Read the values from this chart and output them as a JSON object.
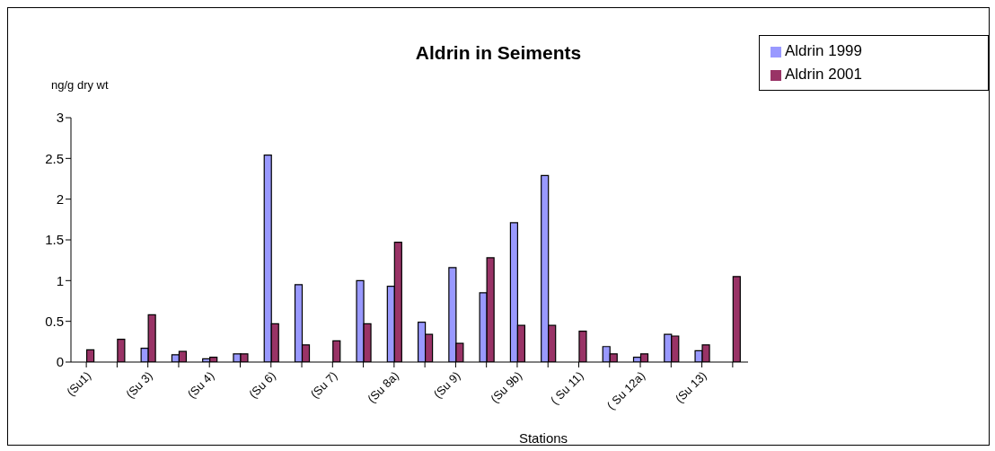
{
  "chart_data": {
    "type": "bar",
    "title": "Aldrin in Seiments",
    "xlabel": "Stations",
    "ylabel": "ng/g dry wt",
    "categories": [
      "(Su1)",
      null,
      "(Su 3)",
      null,
      "(Su 4)",
      null,
      "(Su 6)",
      null,
      "(Su 7)",
      null,
      "(Su 8a)",
      null,
      "(Su 9)",
      null,
      "(Su 9b)",
      null,
      "( Su 11)",
      null,
      "( Su 12a)",
      null,
      "(Su 13)",
      null
    ],
    "series": [
      {
        "name": "Aldrin 1999",
        "color": "#9999ff",
        "values": [
          null,
          null,
          0.17,
          0.09,
          0.04,
          0.1,
          2.54,
          0.95,
          null,
          1.0,
          0.93,
          0.49,
          1.16,
          0.85,
          1.71,
          2.29,
          null,
          0.19,
          0.06,
          0.34,
          0.14,
          null
        ]
      },
      {
        "name": "Aldrin 2001",
        "color": "#993366",
        "values": [
          0.15,
          0.28,
          0.58,
          0.13,
          0.06,
          0.1,
          0.47,
          0.21,
          0.26,
          0.47,
          1.47,
          0.34,
          0.23,
          1.28,
          0.45,
          0.45,
          0.38,
          0.1,
          0.1,
          0.32,
          0.21,
          1.05
        ]
      }
    ],
    "ylim": [
      0,
      3
    ],
    "yticks": [
      0,
      0.5,
      1,
      1.5,
      2,
      2.5,
      3
    ],
    "grid": false,
    "legend": "top right"
  }
}
